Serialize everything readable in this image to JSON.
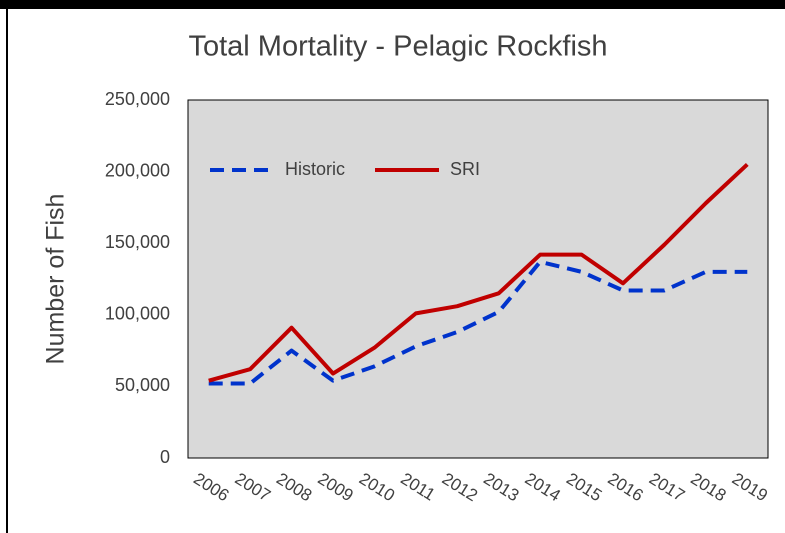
{
  "chart_data": {
    "type": "line",
    "title": "Total Mortality - Pelagic Rockfish",
    "ylabel": "Number of Fish",
    "categories": [
      "2006",
      "2007",
      "2008",
      "2009",
      "2010",
      "2011",
      "2012",
      "2013",
      "2014",
      "2015",
      "2016",
      "2017",
      "2018",
      "2019"
    ],
    "series": [
      {
        "name": "Historic",
        "color": "#0033cc",
        "dashed": true,
        "values": [
          52000,
          52000,
          75000,
          54000,
          64000,
          78000,
          88000,
          102000,
          137000,
          130000,
          117000,
          117000,
          130000,
          130000
        ]
      },
      {
        "name": "SRI",
        "color": "#c00000",
        "dashed": false,
        "values": [
          54000,
          62000,
          91000,
          59000,
          77000,
          101000,
          106000,
          115000,
          142000,
          142000,
          122000,
          149000,
          178000,
          205000
        ]
      }
    ],
    "ylim": [
      0,
      250000
    ],
    "yticks": [
      0,
      {
        "value": 50000,
        "label": "50,000"
      },
      {
        "value": 100000,
        "label": "100,000"
      },
      {
        "value": 150000,
        "label": "150,000"
      },
      {
        "value": 200000,
        "label": "200,000"
      },
      {
        "value": 250000,
        "label": "250,000"
      }
    ],
    "grid": false,
    "legend": "top-left"
  }
}
